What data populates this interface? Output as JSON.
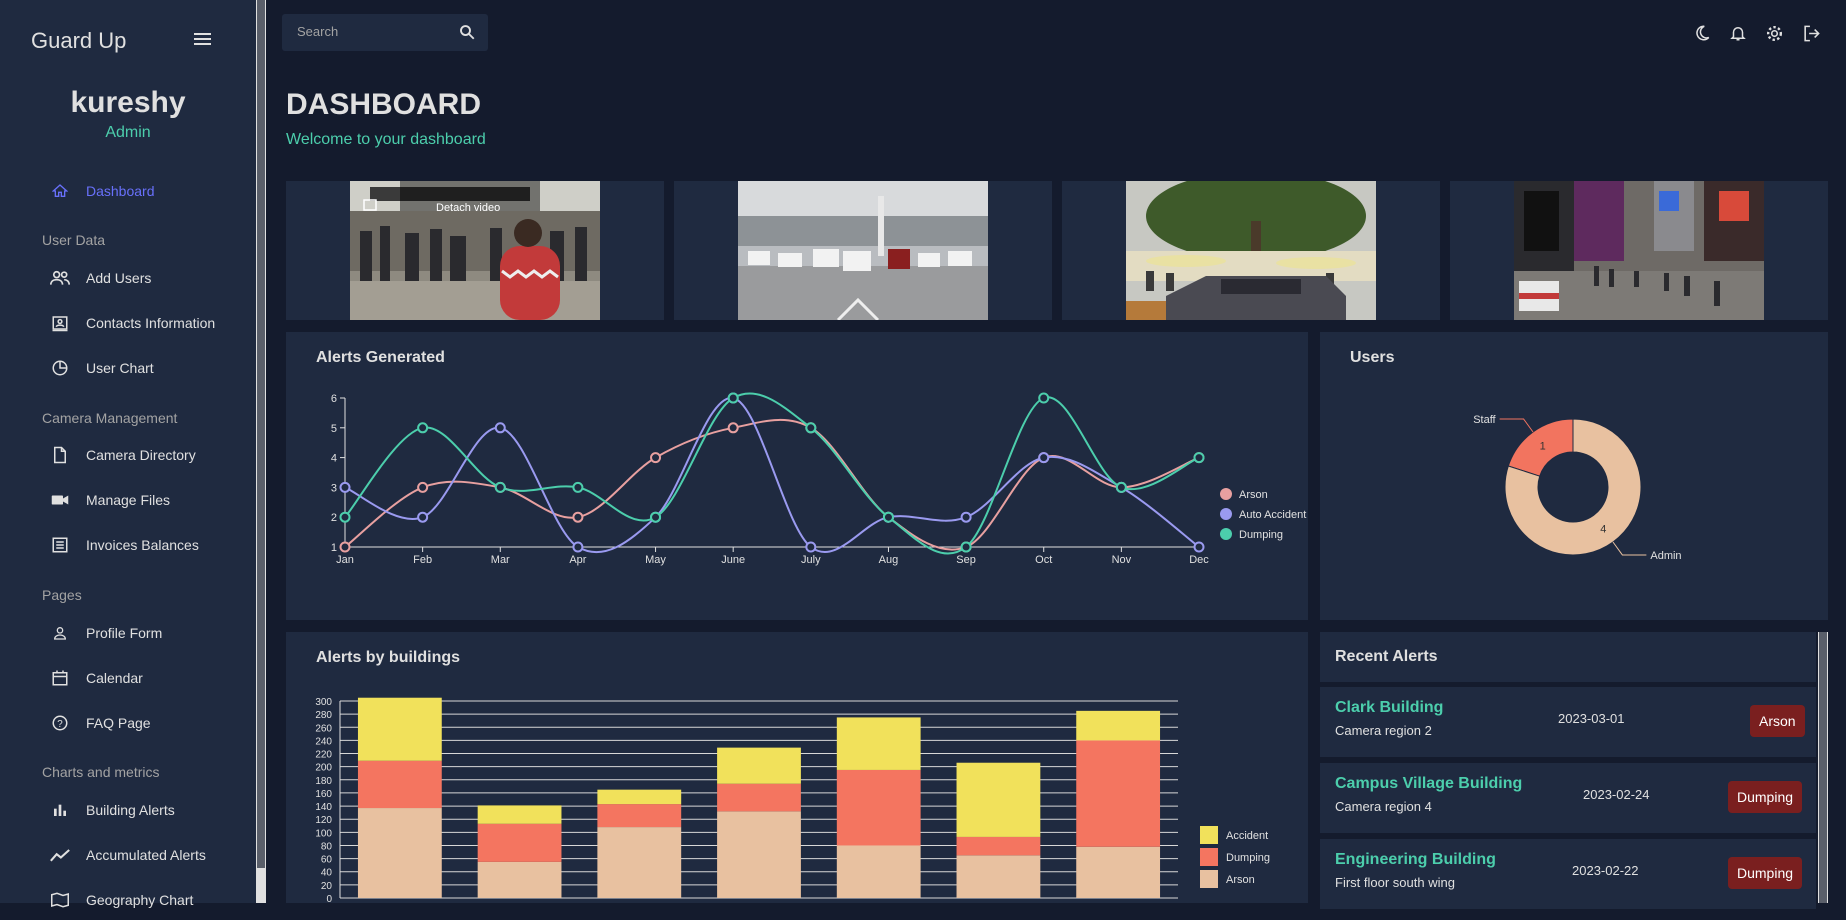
{
  "sidebar": {
    "brand": "Guard Up",
    "profile": {
      "name": "kureshy",
      "role": "Admin"
    },
    "items": [
      {
        "label": "Dashboard",
        "icon": "home-icon",
        "active": true
      },
      {
        "label": "Add Users",
        "icon": "people-icon"
      },
      {
        "label": "Contacts Information",
        "icon": "contacts-icon"
      },
      {
        "label": "User Chart",
        "icon": "pie-chart-icon"
      },
      {
        "label": "Camera Directory",
        "icon": "document-icon"
      },
      {
        "label": "Manage Files",
        "icon": "videocam-icon"
      },
      {
        "label": "Invoices Balances",
        "icon": "receipt-icon"
      },
      {
        "label": "Profile Form",
        "icon": "person-icon"
      },
      {
        "label": "Calendar",
        "icon": "calendar-icon"
      },
      {
        "label": "FAQ Page",
        "icon": "help-icon"
      },
      {
        "label": "Building Alerts",
        "icon": "bar-chart-icon"
      },
      {
        "label": "Accumulated Alerts",
        "icon": "timeline-icon"
      },
      {
        "label": "Geography Chart",
        "icon": "map-icon"
      }
    ],
    "sections": [
      "User Data",
      "Camera Management",
      "Pages",
      "Charts and metrics"
    ]
  },
  "topbar": {
    "search_placeholder": "Search",
    "icons": [
      "dark-mode-icon",
      "notifications-icon",
      "settings-icon",
      "logout-icon"
    ]
  },
  "header": {
    "title": "DASHBOARD",
    "subtitle": "Welcome to your dashboard"
  },
  "cameras": {
    "overlay_label": "Detach video"
  },
  "alerts_chart": {
    "title": "Alerts Generated",
    "chart_data": {
      "type": "line",
      "x": [
        "Jan",
        "Feb",
        "Mar",
        "Apr",
        "May",
        "June",
        "July",
        "Aug",
        "Sep",
        "Oct",
        "Nov",
        "Dec"
      ],
      "ylim": [
        1,
        6
      ],
      "yticks": [
        1,
        2,
        3,
        4,
        5,
        6
      ],
      "series": [
        {
          "name": "Arson",
          "color": "#e8a0a0",
          "values": [
            1,
            3,
            3,
            2,
            4,
            5,
            5,
            2,
            1,
            4,
            3,
            4
          ]
        },
        {
          "name": "Auto Accident",
          "color": "#9a9af0",
          "values": [
            3,
            2,
            5,
            1,
            2,
            6,
            1,
            2,
            2,
            4,
            3,
            1
          ]
        },
        {
          "name": "Dumping",
          "color": "#4cceac",
          "values": [
            2,
            5,
            3,
            3,
            2,
            6,
            5,
            2,
            1,
            6,
            3,
            4
          ]
        }
      ],
      "legend": "right"
    }
  },
  "users_chart": {
    "title": "Users",
    "chart_data": {
      "type": "pie",
      "slices": [
        {
          "label": "Staff",
          "value": 1,
          "color": "#f2745f"
        },
        {
          "label": "Admin",
          "value": 4,
          "color": "#e8c1a0"
        }
      ]
    }
  },
  "buildings_chart": {
    "title": "Alerts by buildings",
    "chart_data": {
      "type": "bar",
      "stacked": true,
      "ylim": [
        0,
        300
      ],
      "yticks": [
        0,
        20,
        40,
        60,
        80,
        100,
        120,
        140,
        160,
        180,
        200,
        220,
        240,
        260,
        280,
        300
      ],
      "series": [
        {
          "name": "Arson",
          "color": "#e8c1a0",
          "values": [
            137,
            55,
            108,
            132,
            80,
            65,
            78
          ]
        },
        {
          "name": "Dumping",
          "color": "#f47560",
          "values": [
            72,
            58,
            35,
            42,
            115,
            28,
            162
          ]
        },
        {
          "name": "Accident",
          "color": "#f1e15b",
          "values": [
            96,
            28,
            22,
            55,
            80,
            113,
            45
          ]
        }
      ],
      "legend": "right"
    }
  },
  "recent_alerts": {
    "title": "Recent Alerts",
    "items": [
      {
        "building": "Clark Building",
        "location": "Camera region 2",
        "date": "2023-03-01",
        "type": "Arson"
      },
      {
        "building": "Campus Village Building",
        "location": "Camera region 4",
        "date": "2023-02-24",
        "type": "Dumping"
      },
      {
        "building": "Engineering Building",
        "location": "First floor south wing",
        "date": "2023-02-22",
        "type": "Dumping"
      }
    ]
  }
}
